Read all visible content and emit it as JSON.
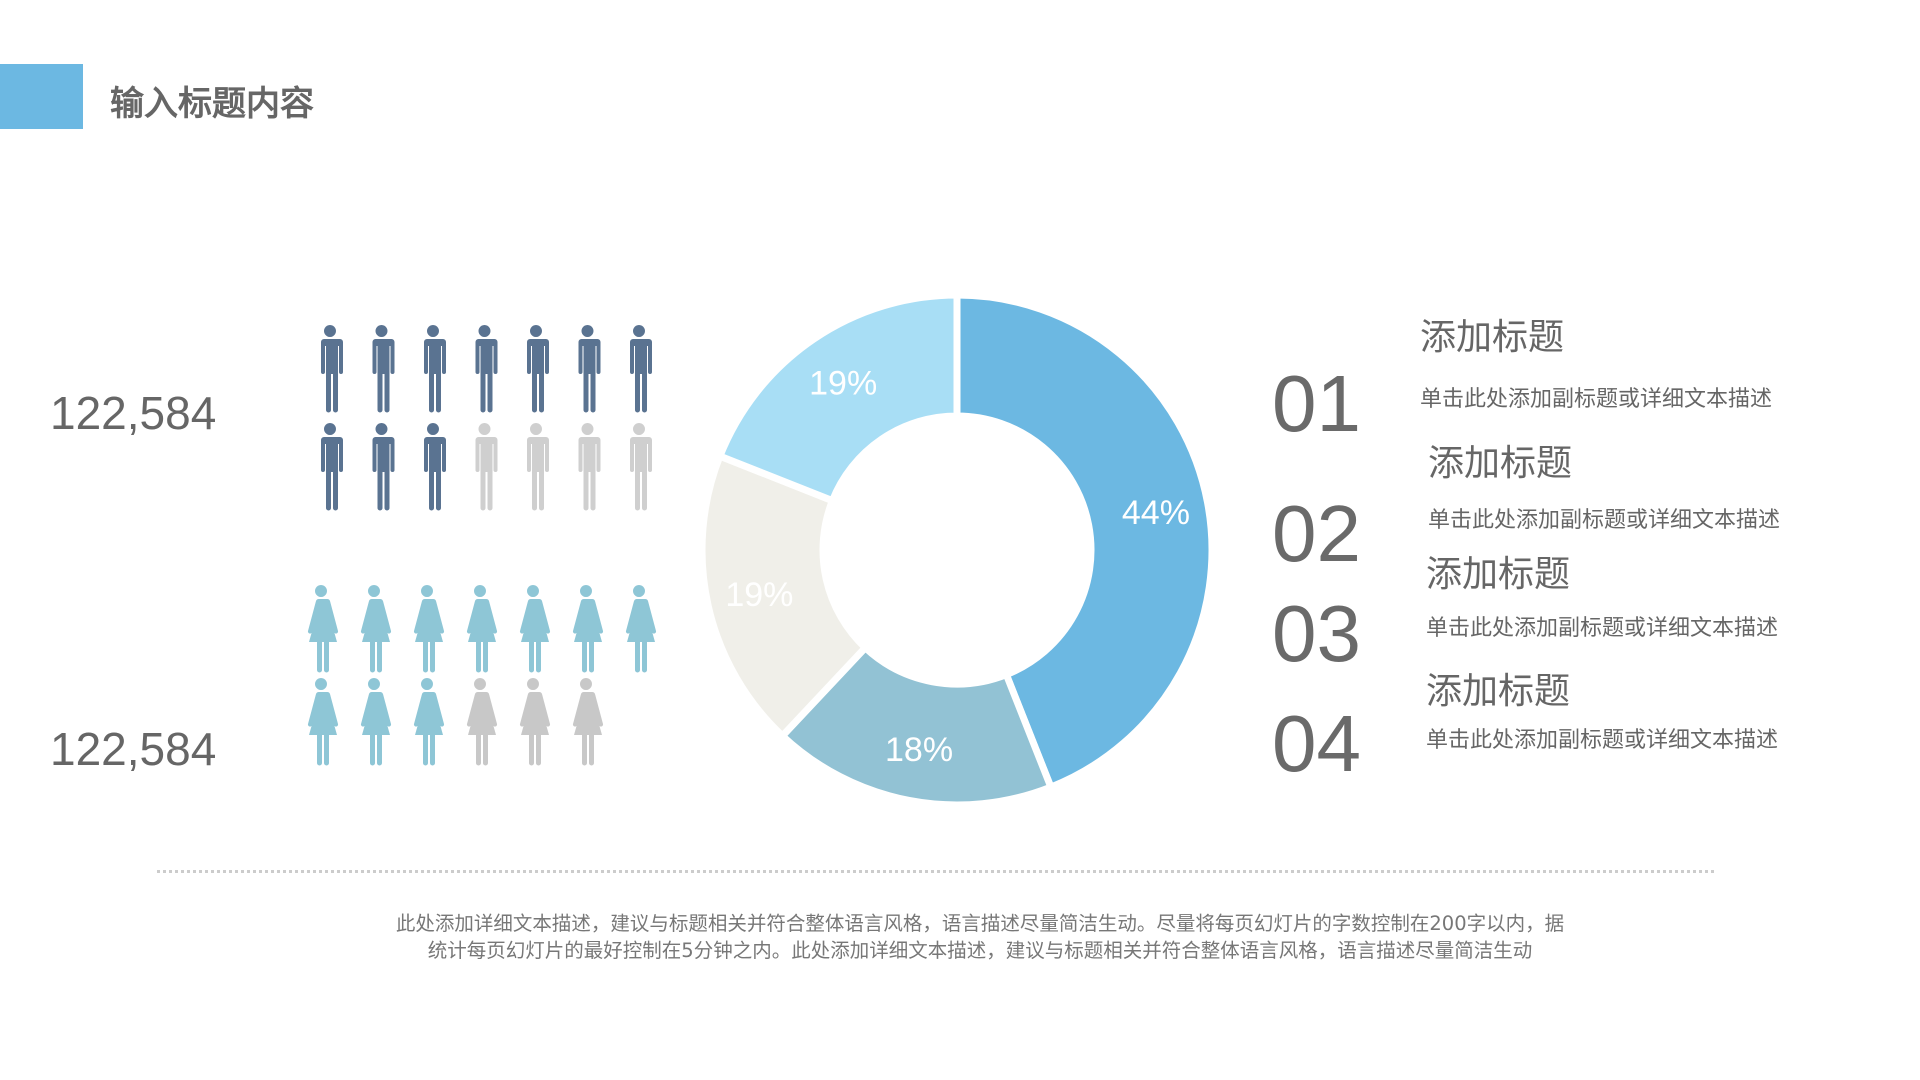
{
  "header": {
    "title": "输入标题内容",
    "accent_color": "#6cb8e2"
  },
  "people": {
    "men": {
      "count_label": "122,584",
      "total": 14,
      "highlighted": 10,
      "color": "#5a7391",
      "inactive_color": "#cfcfcf",
      "icon": "man-icon"
    },
    "women": {
      "count_label": "122,584",
      "total": 13,
      "highlighted": 10,
      "color": "#8ec6d6",
      "inactive_color": "#c8c8c8",
      "icon": "woman-icon"
    }
  },
  "chart_data": {
    "type": "pie",
    "donut": true,
    "slices": [
      {
        "label": "44%",
        "value": 44,
        "color": "#6cb8e2"
      },
      {
        "label": "18%",
        "value": 18,
        "color": "#92c2d4"
      },
      {
        "label": "19%",
        "value": 19,
        "color": "#f0efe9"
      },
      {
        "label": "19%",
        "value": 19,
        "color": "#a8def5"
      }
    ]
  },
  "items": [
    {
      "number": "01",
      "title": "添加标题",
      "desc": "单击此处添加副标题或详细文本描述"
    },
    {
      "number": "02",
      "title": "添加标题",
      "desc": "单击此处添加副标题或详细文本描述"
    },
    {
      "number": "03",
      "title": "添加标题",
      "desc": "单击此处添加副标题或详细文本描述"
    },
    {
      "number": "04",
      "title": "添加标题",
      "desc": "单击此处添加副标题或详细文本描述"
    }
  ],
  "footer": {
    "lines": [
      "此处添加详细文本描述，建议与标题相关并符合整体语言风格，语言描述尽量简洁生动。尽量将每页幻灯片的字数控制在200字以内，据",
      "统计每页幻灯片的最好控制在5分钟之内。此处添加详细文本描述，建议与标题相关并符合整体语言风格，语言描述尽量简洁生动"
    ]
  }
}
